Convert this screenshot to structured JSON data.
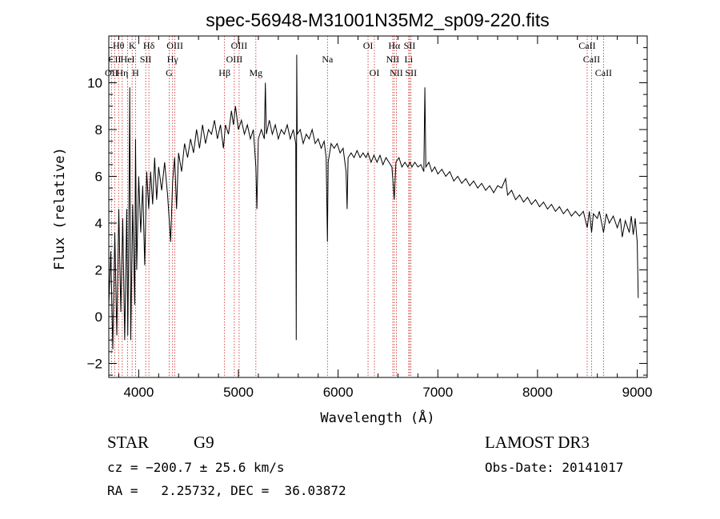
{
  "chart_data": {
    "type": "line",
    "title": "spec-56948-M31001N35M2_sp09-220.fits",
    "xlabel": "Wavelength (Å)",
    "ylabel": "Flux (relative)",
    "xlim": [
      3700,
      9100
    ],
    "ylim": [
      -2.6,
      12.0
    ],
    "x_ticks": [
      4000,
      5000,
      6000,
      7000,
      8000,
      9000
    ],
    "x_tick_labels": [
      "4000",
      "5000",
      "6000",
      "7000",
      "8000",
      "9000"
    ],
    "y_ticks": [
      -2,
      0,
      2,
      4,
      6,
      8,
      10
    ],
    "y_tick_labels": [
      "−2",
      "0",
      "2",
      "4",
      "6",
      "8",
      "10"
    ],
    "series": [
      {
        "name": "flux",
        "points": [
          [
            3700,
            0.5
          ],
          [
            3720,
            2.8
          ],
          [
            3740,
            -1.4
          ],
          [
            3760,
            3.6
          ],
          [
            3780,
            -0.8
          ],
          [
            3800,
            4.6
          ],
          [
            3820,
            0.2
          ],
          [
            3840,
            4.2
          ],
          [
            3860,
            -1.0
          ],
          [
            3880,
            4.6
          ],
          [
            3890,
            -0.8
          ],
          [
            3900,
            3.0
          ],
          [
            3910,
            9.8
          ],
          [
            3920,
            -1.0
          ],
          [
            3940,
            4.8
          ],
          [
            3960,
            0.5
          ],
          [
            3968,
            7.6
          ],
          [
            3980,
            2.0
          ],
          [
            4000,
            6.0
          ],
          [
            4020,
            3.6
          ],
          [
            4040,
            5.6
          ],
          [
            4060,
            2.2
          ],
          [
            4080,
            6.2
          ],
          [
            4100,
            4.6
          ],
          [
            4120,
            6.2
          ],
          [
            4140,
            4.8
          ],
          [
            4160,
            6.8
          ],
          [
            4180,
            5.0
          ],
          [
            4200,
            6.4
          ],
          [
            4230,
            5.4
          ],
          [
            4260,
            6.6
          ],
          [
            4290,
            5.2
          ],
          [
            4320,
            3.2
          ],
          [
            4340,
            5.8
          ],
          [
            4360,
            6.8
          ],
          [
            4380,
            4.6
          ],
          [
            4400,
            7.0
          ],
          [
            4430,
            6.2
          ],
          [
            4460,
            7.4
          ],
          [
            4490,
            6.8
          ],
          [
            4520,
            7.6
          ],
          [
            4550,
            7.0
          ],
          [
            4580,
            8.0
          ],
          [
            4610,
            7.2
          ],
          [
            4640,
            8.2
          ],
          [
            4670,
            7.4
          ],
          [
            4700,
            8.0
          ],
          [
            4730,
            7.8
          ],
          [
            4760,
            8.4
          ],
          [
            4790,
            7.6
          ],
          [
            4820,
            8.2
          ],
          [
            4850,
            7.2
          ],
          [
            4870,
            8.2
          ],
          [
            4900,
            7.8
          ],
          [
            4930,
            8.8
          ],
          [
            4950,
            8.2
          ],
          [
            4970,
            9.0
          ],
          [
            5000,
            8.0
          ],
          [
            5030,
            8.4
          ],
          [
            5060,
            7.8
          ],
          [
            5090,
            8.2
          ],
          [
            5120,
            7.6
          ],
          [
            5150,
            8.0
          ],
          [
            5175,
            6.4
          ],
          [
            5185,
            4.6
          ],
          [
            5200,
            7.6
          ],
          [
            5230,
            8.0
          ],
          [
            5260,
            7.6
          ],
          [
            5270,
            10.0
          ],
          [
            5280,
            7.8
          ],
          [
            5310,
            8.4
          ],
          [
            5340,
            7.8
          ],
          [
            5370,
            8.2
          ],
          [
            5400,
            7.6
          ],
          [
            5430,
            8.0
          ],
          [
            5460,
            7.8
          ],
          [
            5490,
            8.2
          ],
          [
            5520,
            7.6
          ],
          [
            5550,
            8.0
          ],
          [
            5575,
            7.4
          ],
          [
            5580,
            -1.0
          ],
          [
            5585,
            11.2
          ],
          [
            5590,
            7.8
          ],
          [
            5620,
            8.0
          ],
          [
            5650,
            7.4
          ],
          [
            5680,
            7.8
          ],
          [
            5710,
            7.6
          ],
          [
            5740,
            8.0
          ],
          [
            5770,
            7.4
          ],
          [
            5800,
            7.6
          ],
          [
            5830,
            7.2
          ],
          [
            5860,
            7.5
          ],
          [
            5880,
            6.8
          ],
          [
            5893,
            3.2
          ],
          [
            5900,
            6.6
          ],
          [
            5930,
            7.4
          ],
          [
            5960,
            7.2
          ],
          [
            5990,
            7.4
          ],
          [
            6020,
            7.0
          ],
          [
            6050,
            7.2
          ],
          [
            6080,
            6.2
          ],
          [
            6090,
            4.6
          ],
          [
            6100,
            6.8
          ],
          [
            6130,
            7.0
          ],
          [
            6160,
            6.8
          ],
          [
            6190,
            7.1
          ],
          [
            6220,
            6.8
          ],
          [
            6250,
            7.0
          ],
          [
            6280,
            6.8
          ],
          [
            6300,
            7.0
          ],
          [
            6330,
            6.6
          ],
          [
            6360,
            6.9
          ],
          [
            6390,
            6.6
          ],
          [
            6420,
            6.9
          ],
          [
            6450,
            6.5
          ],
          [
            6480,
            6.8
          ],
          [
            6510,
            6.6
          ],
          [
            6540,
            6.4
          ],
          [
            6563,
            5.0
          ],
          [
            6580,
            6.6
          ],
          [
            6610,
            6.8
          ],
          [
            6640,
            6.4
          ],
          [
            6670,
            6.6
          ],
          [
            6700,
            6.4
          ],
          [
            6720,
            6.6
          ],
          [
            6740,
            6.4
          ],
          [
            6770,
            6.6
          ],
          [
            6800,
            6.4
          ],
          [
            6830,
            6.5
          ],
          [
            6860,
            6.2
          ],
          [
            6870,
            9.8
          ],
          [
            6880,
            6.4
          ],
          [
            6910,
            6.6
          ],
          [
            6940,
            6.2
          ],
          [
            6970,
            6.4
          ],
          [
            7000,
            6.1
          ],
          [
            7040,
            6.3
          ],
          [
            7080,
            6.0
          ],
          [
            7120,
            6.2
          ],
          [
            7160,
            5.8
          ],
          [
            7200,
            6.0
          ],
          [
            7240,
            5.7
          ],
          [
            7280,
            5.9
          ],
          [
            7320,
            5.6
          ],
          [
            7360,
            5.8
          ],
          [
            7400,
            5.5
          ],
          [
            7440,
            5.7
          ],
          [
            7480,
            5.4
          ],
          [
            7520,
            5.6
          ],
          [
            7560,
            5.3
          ],
          [
            7600,
            5.6
          ],
          [
            7640,
            5.5
          ],
          [
            7680,
            5.9
          ],
          [
            7700,
            5.2
          ],
          [
            7740,
            5.4
          ],
          [
            7780,
            5.0
          ],
          [
            7820,
            5.2
          ],
          [
            7860,
            4.9
          ],
          [
            7900,
            5.1
          ],
          [
            7940,
            4.8
          ],
          [
            7980,
            5.0
          ],
          [
            8020,
            4.7
          ],
          [
            8060,
            4.9
          ],
          [
            8100,
            4.6
          ],
          [
            8140,
            4.8
          ],
          [
            8180,
            4.5
          ],
          [
            8220,
            4.7
          ],
          [
            8260,
            4.4
          ],
          [
            8300,
            4.6
          ],
          [
            8340,
            4.3
          ],
          [
            8380,
            4.5
          ],
          [
            8420,
            4.3
          ],
          [
            8460,
            4.5
          ],
          [
            8498,
            3.8
          ],
          [
            8520,
            4.5
          ],
          [
            8542,
            3.6
          ],
          [
            8560,
            4.4
          ],
          [
            8600,
            4.2
          ],
          [
            8620,
            4.5
          ],
          [
            8662,
            3.6
          ],
          [
            8690,
            4.4
          ],
          [
            8720,
            4.0
          ],
          [
            8760,
            4.3
          ],
          [
            8800,
            3.8
          ],
          [
            8830,
            4.2
          ],
          [
            8850,
            3.4
          ],
          [
            8880,
            4.1
          ],
          [
            8920,
            3.6
          ],
          [
            8940,
            4.3
          ],
          [
            8960,
            3.5
          ],
          [
            8980,
            4.2
          ],
          [
            9000,
            3.2
          ],
          [
            9010,
            0.8
          ]
        ]
      }
    ],
    "line_labels": [
      {
        "text": "Hθ",
        "x": 3798,
        "row": 1
      },
      {
        "text": "K",
        "x": 3934,
        "row": 1
      },
      {
        "text": "Hδ",
        "x": 4102,
        "row": 1
      },
      {
        "text": "OIII",
        "x": 4363,
        "row": 1
      },
      {
        "text": "OIII",
        "x": 5007,
        "row": 1
      },
      {
        "text": "OI",
        "x": 6300,
        "row": 1
      },
      {
        "text": "Hα",
        "x": 6563,
        "row": 1
      },
      {
        "text": "SII",
        "x": 6717,
        "row": 1
      },
      {
        "text": "CaII",
        "x": 8498,
        "row": 1
      },
      {
        "text": "CII",
        "x": 3760,
        "row": 2
      },
      {
        "text": "HeI",
        "x": 3889,
        "row": 2
      },
      {
        "text": "SII",
        "x": 4070,
        "row": 2
      },
      {
        "text": "Hγ",
        "x": 4340,
        "row": 2
      },
      {
        "text": "OIII",
        "x": 4959,
        "row": 2
      },
      {
        "text": "Na",
        "x": 5893,
        "row": 2
      },
      {
        "text": "NII",
        "x": 6548,
        "row": 2
      },
      {
        "text": "Li",
        "x": 6708,
        "row": 2
      },
      {
        "text": "CaII",
        "x": 8542,
        "row": 2
      },
      {
        "text": "OII",
        "x": 3727,
        "row": 3
      },
      {
        "text": "Hη",
        "x": 3835,
        "row": 3
      },
      {
        "text": "H",
        "x": 3968,
        "row": 3
      },
      {
        "text": "G",
        "x": 4305,
        "row": 3
      },
      {
        "text": "Hβ",
        "x": 4861,
        "row": 3
      },
      {
        "text": "Mg",
        "x": 5175,
        "row": 3
      },
      {
        "text": "OI",
        "x": 6364,
        "row": 3
      },
      {
        "text": "NII",
        "x": 6584,
        "row": 3
      },
      {
        "text": "SII",
        "x": 6731,
        "row": 3
      },
      {
        "text": "CaII",
        "x": 8662,
        "row": 3
      }
    ],
    "line_positions": [
      3727,
      3760,
      3798,
      3835,
      3889,
      3934,
      3968,
      4070,
      4102,
      4305,
      4340,
      4363,
      4861,
      4959,
      5007,
      5175,
      5893,
      6300,
      6364,
      6548,
      6563,
      6584,
      6708,
      6717,
      6731,
      8498,
      8542,
      8662
    ]
  },
  "info": {
    "object_class": "STAR",
    "subclass": "G9",
    "survey": "LAMOST DR3",
    "redshift": "cz = −200.7 ± 25.6 km/s",
    "obs_date": "Obs-Date: 20141017",
    "coords": "RA =   2.25732, DEC =  36.03872"
  },
  "colors": {
    "spectrum": "#000000",
    "line_markers": "#cc2222",
    "axes": "#000000",
    "background": "#ffffff"
  }
}
